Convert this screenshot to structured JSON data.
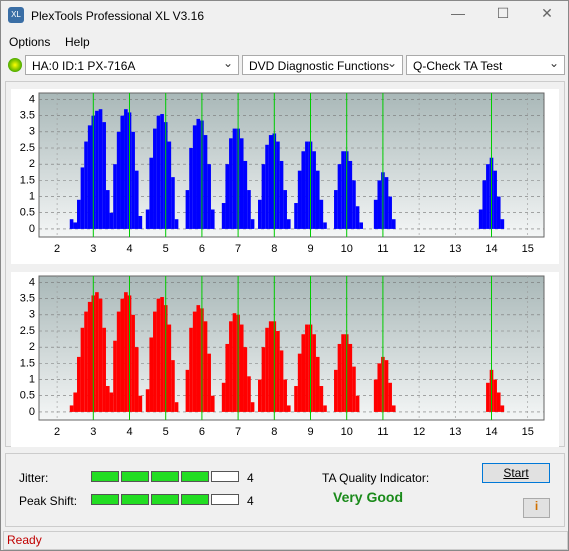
{
  "window": {
    "title": "PlexTools Professional XL V3.16",
    "menu": [
      "Options",
      "Help"
    ],
    "drive": "HA:0 ID:1  PX-716A",
    "function": "DVD Diagnostic Functions",
    "test": "Q-Check TA Test"
  },
  "chart_data": [
    {
      "type": "bar",
      "color": "#0000ff",
      "reference_color": "#00cc00",
      "x": [
        2.4,
        2.5,
        2.6,
        2.7,
        2.8,
        2.9,
        3.0,
        3.1,
        3.2,
        3.3,
        3.4,
        3.5,
        3.6,
        3.7,
        3.8,
        3.9,
        4.0,
        4.1,
        4.2,
        4.3,
        4.5,
        4.6,
        4.7,
        4.8,
        4.9,
        5.0,
        5.1,
        5.2,
        5.3,
        5.6,
        5.7,
        5.8,
        5.9,
        6.0,
        6.1,
        6.2,
        6.3,
        6.6,
        6.7,
        6.8,
        6.9,
        7.0,
        7.1,
        7.2,
        7.3,
        7.4,
        7.6,
        7.7,
        7.8,
        7.9,
        8.0,
        8.1,
        8.2,
        8.3,
        8.4,
        8.6,
        8.7,
        8.8,
        8.9,
        9.0,
        9.1,
        9.2,
        9.3,
        9.4,
        9.7,
        9.8,
        9.9,
        10.0,
        10.1,
        10.2,
        10.3,
        10.4,
        10.8,
        10.9,
        11.0,
        11.1,
        11.2,
        11.3,
        13.7,
        13.8,
        13.9,
        14.0,
        14.1,
        14.2,
        14.3
      ],
      "values": [
        0.3,
        0.2,
        0.9,
        1.9,
        2.7,
        3.2,
        3.5,
        3.65,
        3.7,
        3.3,
        1.2,
        0.5,
        2.0,
        3.0,
        3.5,
        3.7,
        3.6,
        3.0,
        1.8,
        0.4,
        0.6,
        2.2,
        3.1,
        3.5,
        3.55,
        3.3,
        2.7,
        1.6,
        0.3,
        1.2,
        2.5,
        3.2,
        3.4,
        3.35,
        2.9,
        2.0,
        0.6,
        0.8,
        2.0,
        2.8,
        3.1,
        3.1,
        2.8,
        2.1,
        1.2,
        0.3,
        0.9,
        2.0,
        2.6,
        2.9,
        2.95,
        2.7,
        2.1,
        1.2,
        0.3,
        0.8,
        1.8,
        2.4,
        2.7,
        2.7,
        2.4,
        1.8,
        0.9,
        0.2,
        1.2,
        2.0,
        2.4,
        2.4,
        2.1,
        1.5,
        0.7,
        0.2,
        0.9,
        1.5,
        1.75,
        1.6,
        1.0,
        0.3,
        0.6,
        1.5,
        2.0,
        2.2,
        1.8,
        1.0,
        0.3
      ],
      "xlim": [
        1.5,
        15.45
      ],
      "ylim": [
        -0.25,
        4.2
      ],
      "xticks": [
        2,
        3,
        4,
        5,
        6,
        7,
        8,
        9,
        10,
        11,
        12,
        13,
        14,
        15
      ],
      "yticks": [
        0,
        0.5,
        1,
        1.5,
        2,
        2.5,
        3,
        3.5,
        4
      ],
      "reference_lines": [
        3,
        4,
        5,
        6,
        7,
        8,
        9,
        10,
        11,
        14
      ],
      "grid": true
    },
    {
      "type": "bar",
      "color": "#ff0000",
      "reference_color": "#00cc00",
      "x": [
        2.4,
        2.5,
        2.6,
        2.7,
        2.8,
        2.9,
        3.0,
        3.1,
        3.2,
        3.3,
        3.4,
        3.5,
        3.6,
        3.7,
        3.8,
        3.9,
        4.0,
        4.1,
        4.2,
        4.3,
        4.5,
        4.6,
        4.7,
        4.8,
        4.9,
        5.0,
        5.1,
        5.2,
        5.3,
        5.6,
        5.7,
        5.8,
        5.9,
        6.0,
        6.1,
        6.2,
        6.3,
        6.6,
        6.7,
        6.8,
        6.9,
        7.0,
        7.1,
        7.2,
        7.3,
        7.4,
        7.6,
        7.7,
        7.8,
        7.9,
        8.0,
        8.1,
        8.2,
        8.3,
        8.4,
        8.6,
        8.7,
        8.8,
        8.9,
        9.0,
        9.1,
        9.2,
        9.3,
        9.4,
        9.7,
        9.8,
        9.9,
        10.0,
        10.1,
        10.2,
        10.3,
        10.8,
        10.9,
        11.0,
        11.1,
        11.2,
        11.3,
        13.9,
        14.0,
        14.1,
        14.2,
        14.3
      ],
      "values": [
        0.2,
        0.6,
        1.7,
        2.6,
        3.1,
        3.4,
        3.6,
        3.7,
        3.5,
        2.6,
        0.8,
        0.6,
        2.2,
        3.1,
        3.5,
        3.7,
        3.6,
        3.0,
        2.0,
        0.5,
        0.7,
        2.3,
        3.1,
        3.5,
        3.55,
        3.3,
        2.7,
        1.6,
        0.3,
        1.3,
        2.6,
        3.1,
        3.3,
        3.2,
        2.8,
        1.8,
        0.5,
        0.9,
        2.1,
        2.8,
        3.05,
        3.0,
        2.7,
        2.0,
        1.1,
        0.3,
        1.0,
        2.0,
        2.6,
        2.8,
        2.8,
        2.5,
        1.9,
        1.0,
        0.2,
        0.8,
        1.8,
        2.4,
        2.7,
        2.7,
        2.4,
        1.7,
        0.8,
        0.2,
        1.3,
        2.1,
        2.4,
        2.4,
        2.1,
        1.4,
        0.5,
        1.0,
        1.5,
        1.7,
        1.6,
        0.9,
        0.2,
        0.9,
        1.3,
        1.0,
        0.6,
        0.2
      ],
      "xlim": [
        1.5,
        15.45
      ],
      "ylim": [
        -0.25,
        4.2
      ],
      "xticks": [
        2,
        3,
        4,
        5,
        6,
        7,
        8,
        9,
        10,
        11,
        12,
        13,
        14,
        15
      ],
      "yticks": [
        0,
        0.5,
        1,
        1.5,
        2,
        2.5,
        3,
        3.5,
        4
      ],
      "reference_lines": [
        3,
        4,
        5,
        6,
        7,
        8,
        9,
        10,
        11,
        14
      ],
      "grid": true
    }
  ],
  "results": {
    "jitter_label": "Jitter:",
    "jitter": 4,
    "peak_shift_label": "Peak Shift:",
    "peak_shift": 4,
    "quality_label": "TA Quality Indicator:",
    "quality": "Very Good",
    "start": "Start"
  },
  "status": "Ready"
}
